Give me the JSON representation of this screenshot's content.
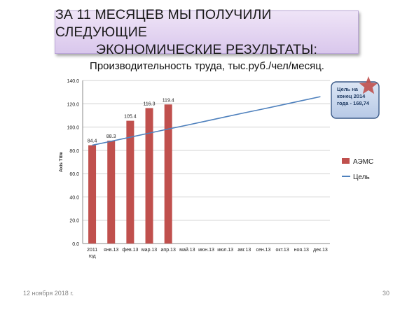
{
  "slide": {
    "title_line1": "ЗА 11 МЕСЯЦЕВ МЫ ПОЛУЧИЛИ СЛЕДУЮЩИЕ",
    "title_line2": "ЭКОНОМИЧЕСКИЕ РЕЗУЛЬТАТЫ:",
    "footer_date": "12 ноября 2018 г.",
    "footer_page": "30"
  },
  "chart_data": {
    "type": "bar",
    "title": "Производительность труда, тыс.руб./чел/месяц.",
    "xlabel": "",
    "ylabel": "Axis Title",
    "ylim": [
      0,
      140
    ],
    "yticks": [
      "0.0",
      "20.0",
      "40.0",
      "60.0",
      "80.0",
      "100.0",
      "120.0",
      "140.0"
    ],
    "grid": true,
    "legend_position": "right",
    "categories": [
      "2011 год",
      "янв.13",
      "фев.13",
      "мар.13",
      "апр.13",
      "май.13",
      "июн.13",
      "июл.13",
      "авг.13",
      "сен.13",
      "окт.13",
      "ноя.13",
      "дек.13"
    ],
    "series": [
      {
        "name": "АЭМС",
        "type": "bar",
        "color": "#c0504d",
        "values": [
          84.4,
          88.3,
          105.4,
          116.3,
          119.4,
          null,
          null,
          null,
          null,
          null,
          null,
          null,
          null
        ],
        "labels": [
          "84.4",
          "88.3",
          "105.4",
          "116.3",
          "119.4"
        ]
      },
      {
        "name": "Цель",
        "type": "line",
        "color": "#4f81bd",
        "values": [
          84.4,
          87.8,
          91.3,
          94.8,
          98.3,
          101.7,
          105.2,
          108.7,
          112.2,
          115.6,
          119.1,
          122.6,
          126.1
        ]
      }
    ],
    "annotation": {
      "text_lines": [
        "Цель на",
        "конец 2014",
        "года - 168,74"
      ],
      "star_color": "#c0504d"
    }
  }
}
